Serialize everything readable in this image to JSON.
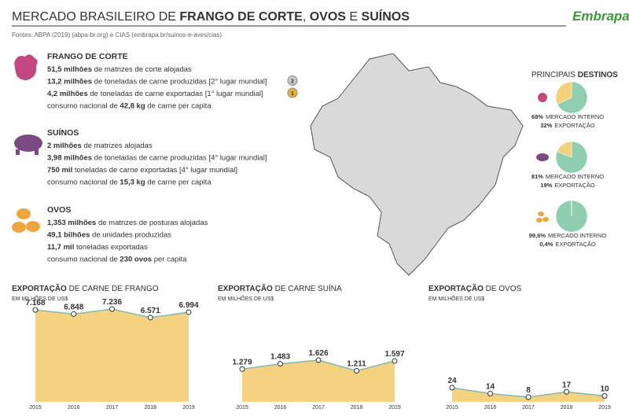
{
  "header": {
    "title": [
      {
        "text": "MERCADO BRASILEIRO DE ",
        "bold": false
      },
      {
        "text": "FRANGO DE CORTE",
        "bold": true
      },
      {
        "text": ", ",
        "bold": false
      },
      {
        "text": "OVOS",
        "bold": true
      },
      {
        "text": " E ",
        "bold": false
      },
      {
        "text": "SUÍNOS",
        "bold": true
      }
    ],
    "logo": "Embrapa",
    "sources": "Fontes: ABPA (2019) (abpa-br.org) e CIAS (embrapa.br/suinos-e-aves/cias)"
  },
  "sections": [
    {
      "title": "FRANGO DE CORTE",
      "color": "#c2477f",
      "lines": [
        {
          "segments": [
            {
              "text": "51,5 milhões",
              "bold": true
            },
            {
              "text": " de matrizes de corte alojadas",
              "bold": false
            }
          ]
        },
        {
          "segments": [
            {
              "text": "13,2 milhões",
              "bold": true
            },
            {
              "text": " de toneladas de carne produzidas [2° lugar mundial]",
              "bold": false
            }
          ],
          "medal": "2"
        },
        {
          "segments": [
            {
              "text": "4,2 milhões",
              "bold": true
            },
            {
              "text": " de toneladas de carne exportadas [1° lugar mundial]",
              "bold": false
            }
          ],
          "medal": "1"
        },
        {
          "segments": [
            {
              "text": "consumo nacional de ",
              "bold": false
            },
            {
              "text": "42,8 kg",
              "bold": true
            },
            {
              "text": " de carne per capita",
              "bold": false
            }
          ]
        }
      ]
    },
    {
      "title": "SUÍNOS",
      "color": "#7a4a82",
      "lines": [
        {
          "segments": [
            {
              "text": "2 milhões",
              "bold": true
            },
            {
              "text": " de matrizes alojadas",
              "bold": false
            }
          ]
        },
        {
          "segments": [
            {
              "text": "3,98 milhões",
              "bold": true
            },
            {
              "text": " de toneladas de carne produzidas [4° lugar mundial]",
              "bold": false
            }
          ]
        },
        {
          "segments": [
            {
              "text": "750 mil",
              "bold": true
            },
            {
              "text": " toneladas de carne exportadas [4° lugar mundial]",
              "bold": false
            }
          ]
        },
        {
          "segments": [
            {
              "text": "consumo nacional de ",
              "bold": false
            },
            {
              "text": "15,3 kg",
              "bold": true
            },
            {
              "text": " de carne per capita",
              "bold": false
            }
          ]
        }
      ]
    },
    {
      "title": "OVOS",
      "color": "#f0a640",
      "lines": [
        {
          "segments": [
            {
              "text": "1,353 milhões",
              "bold": true
            },
            {
              "text": " de matrizes de posturas alojadas",
              "bold": false
            }
          ]
        },
        {
          "segments": [
            {
              "text": "49,1 bilhões",
              "bold": true
            },
            {
              "text": " de unidades produzidas",
              "bold": false
            }
          ]
        },
        {
          "segments": [
            {
              "text": "11,7 mil",
              "bold": true
            },
            {
              "text": " toneladas exportadas",
              "bold": false
            }
          ]
        },
        {
          "segments": [
            {
              "text": "consumo nacional de ",
              "bold": false
            },
            {
              "text": "230 ovos",
              "bold": true
            },
            {
              "text": " per capita",
              "bold": false
            }
          ]
        }
      ]
    }
  ],
  "destinations": {
    "title": [
      {
        "text": "PRINCIPAIS ",
        "bold": false
      },
      {
        "text": "DESTINOS",
        "bold": true
      }
    ]
  },
  "chart_data": [
    {
      "type": "pie",
      "categories": [
        "MERCADO INTERNO",
        "EXPORTAÇÃO"
      ],
      "values": [
        68,
        32
      ],
      "value_labels": [
        "68%",
        "32%"
      ],
      "colors": [
        "#8fcfb0",
        "#f2d27c"
      ]
    },
    {
      "type": "pie",
      "categories": [
        "MERCADO INTERNO",
        "EXPORTAÇÃO"
      ],
      "values": [
        81,
        19
      ],
      "value_labels": [
        "81%",
        "19%"
      ],
      "colors": [
        "#8fcfb0",
        "#f2d27c"
      ]
    },
    {
      "type": "pie",
      "categories": [
        "MERCADO INTERNO",
        "EXPORTAÇÃO"
      ],
      "values": [
        99.6,
        0.4
      ],
      "value_labels": [
        "99,6%",
        "0,4%"
      ],
      "colors": [
        "#8fcfb0",
        "#f2d27c"
      ]
    },
    {
      "type": "area",
      "title": [
        {
          "text": "EXPORTAÇÃO",
          "bold": true
        },
        {
          "text": " DE CARNE DE FRANGO",
          "bold": false
        }
      ],
      "subtitle": "EM MILHÕES DE US$",
      "categories": [
        "2015",
        "2016",
        "2017",
        "2018",
        "2019"
      ],
      "values": [
        7168,
        6848,
        7236,
        6571,
        6994
      ],
      "value_labels": [
        "7.168",
        "6.848",
        "7.236",
        "6.571",
        "6.994"
      ],
      "color": "#f5d27f",
      "line_color": "#7fb9b5"
    },
    {
      "type": "area",
      "title": [
        {
          "text": "EXPORTAÇÃO",
          "bold": true
        },
        {
          "text": " DE CARNE SUÍNA",
          "bold": false
        }
      ],
      "subtitle": "EM MILHÕES DE US$",
      "categories": [
        "2015",
        "2016",
        "2017",
        "2018",
        "2019"
      ],
      "values": [
        1279,
        1483,
        1626,
        1211,
        1597
      ],
      "value_labels": [
        "1.279",
        "1.483",
        "1.626",
        "1.211",
        "1.597"
      ],
      "color": "#f5d27f",
      "line_color": "#7fb9b5"
    },
    {
      "type": "area",
      "title": [
        {
          "text": "EXPORTAÇÃO",
          "bold": true
        },
        {
          "text": " DE OVOS",
          "bold": false
        }
      ],
      "subtitle": "EM MILHÕES DE US$",
      "categories": [
        "2015",
        "2016",
        "2017",
        "2018",
        "2019"
      ],
      "values": [
        24,
        14,
        8,
        17,
        10
      ],
      "value_labels": [
        "24",
        "14",
        "8",
        "17",
        "10"
      ],
      "color": "#f5d27f",
      "line_color": "#7fb9b5"
    }
  ]
}
